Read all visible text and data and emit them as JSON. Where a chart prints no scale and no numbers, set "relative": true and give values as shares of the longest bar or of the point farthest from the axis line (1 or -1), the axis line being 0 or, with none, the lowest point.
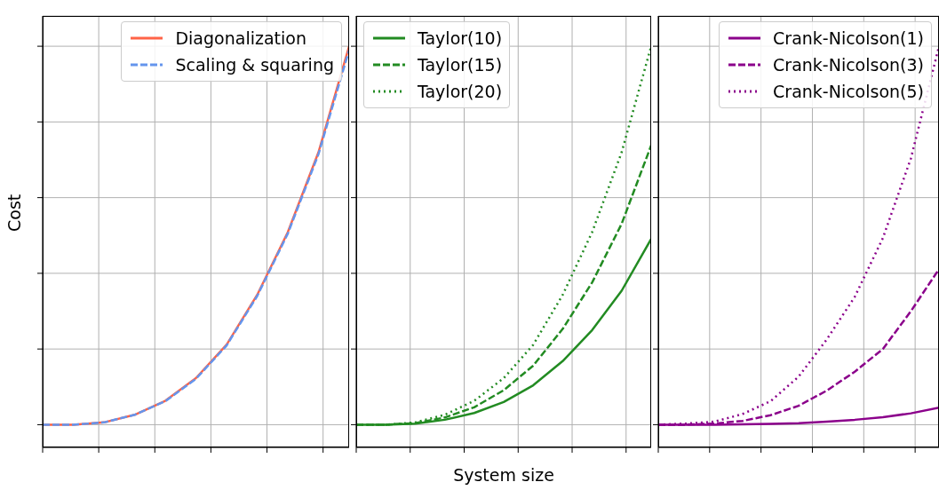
{
  "chart_data": [
    {
      "type": "line",
      "relative": true,
      "ylabel": "Cost",
      "grid": true,
      "legend": "top right",
      "tick_labels": false,
      "categories": [
        null,
        null,
        null,
        null,
        null,
        null,
        null,
        null,
        null,
        null,
        null
      ],
      "series": [
        {
          "name": "Diagonalization",
          "color": "#ff6347",
          "line_style": "solid",
          "values": [
            0,
            0,
            0.006,
            0.026,
            0.063,
            0.123,
            0.211,
            0.343,
            0.509,
            0.72,
            1
          ]
        },
        {
          "name": "Scaling & squaring",
          "color": "#6495ed",
          "line_style": "dashed",
          "values": [
            0,
            0,
            0.006,
            0.026,
            0.062,
            0.121,
            0.209,
            0.34,
            0.505,
            0.715,
            0.99
          ]
        }
      ]
    },
    {
      "type": "line",
      "relative": true,
      "xlabel": "System size",
      "grid": true,
      "legend": "top left",
      "tick_labels": false,
      "categories": [
        null,
        null,
        null,
        null,
        null,
        null,
        null,
        null,
        null,
        null,
        null
      ],
      "series": [
        {
          "name": "Taylor(10)",
          "color": "#228b22",
          "line_style": "solid",
          "values": [
            0,
            0,
            0.003,
            0.013,
            0.031,
            0.06,
            0.104,
            0.168,
            0.25,
            0.354,
            0.491
          ]
        },
        {
          "name": "Taylor(15)",
          "color": "#228b22",
          "line_style": "dashed",
          "values": [
            0,
            0,
            0.004,
            0.019,
            0.046,
            0.091,
            0.156,
            0.253,
            0.376,
            0.531,
            0.738
          ]
        },
        {
          "name": "Taylor(20)",
          "color": "#228b22",
          "line_style": "dotted",
          "values": [
            0,
            0,
            0.006,
            0.026,
            0.063,
            0.123,
            0.211,
            0.343,
            0.509,
            0.72,
            1
          ]
        }
      ]
    },
    {
      "type": "line",
      "relative": true,
      "grid": true,
      "legend": "top right",
      "tick_labels": false,
      "categories": [
        null,
        null,
        null,
        null,
        null,
        null,
        null,
        null,
        null,
        null,
        null
      ],
      "series": [
        {
          "name": "Crank-Nicolson(1)",
          "color": "#8b008b",
          "line_style": "solid",
          "values": [
            0,
            0,
            0,
            0.001,
            0.002,
            0.004,
            0.008,
            0.013,
            0.02,
            0.03,
            0.045
          ]
        },
        {
          "name": "Crank-Nicolson(3)",
          "color": "#8b008b",
          "line_style": "dashed",
          "values": [
            0,
            0,
            0.003,
            0.01,
            0.025,
            0.05,
            0.09,
            0.14,
            0.2,
            0.3,
            0.411
          ]
        },
        {
          "name": "Crank-Nicolson(5)",
          "color": "#8b008b",
          "line_style": "dotted",
          "values": [
            0,
            0.003,
            0.008,
            0.028,
            0.062,
            0.127,
            0.225,
            0.338,
            0.493,
            0.704,
            1
          ]
        }
      ]
    }
  ]
}
